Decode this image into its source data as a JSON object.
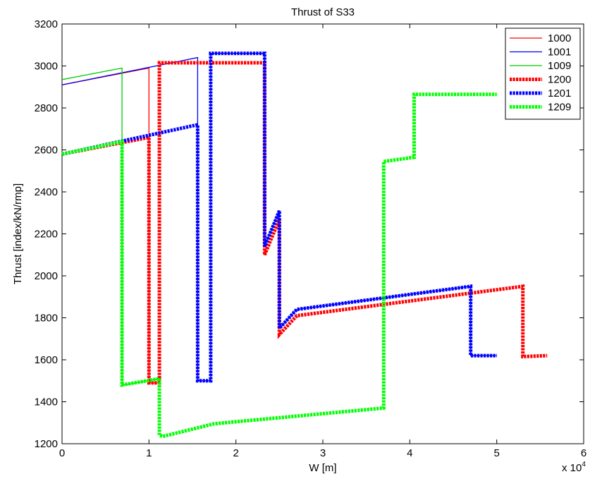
{
  "chart_data": {
    "type": "line",
    "title": "Thrust of S33",
    "xlabel": "W [m]",
    "ylabel": "Thrust [index/kN/rmp]",
    "x_multiplier": "x 10",
    "x_multiplier_exp": "4",
    "xlim": [
      0,
      60000
    ],
    "ylim": [
      1200,
      3200
    ],
    "xticks": [
      0,
      10000,
      20000,
      30000,
      40000,
      50000,
      60000
    ],
    "xtick_labels": [
      "0",
      "1",
      "2",
      "3",
      "4",
      "5",
      "6"
    ],
    "yticks": [
      1200,
      1400,
      1600,
      1800,
      2000,
      2200,
      2400,
      2600,
      2800,
      3000,
      3200
    ],
    "ytick_labels": [
      "1200",
      "1400",
      "1600",
      "1800",
      "2000",
      "2200",
      "2400",
      "2600",
      "2800",
      "3000",
      "3200"
    ],
    "grid": false,
    "legend_position": "top-right",
    "series": [
      {
        "name": "1000",
        "color": "#ff0000",
        "style": "solid",
        "x": [
          0,
          10000,
          10000,
          10100,
          10500,
          11200,
          11300,
          11400
        ],
        "y": [
          2910,
          2990,
          1490,
          1490,
          1490,
          1490,
          1510,
          1510
        ]
      },
      {
        "name": "1001",
        "color": "#0000ff",
        "style": "solid",
        "x": [
          0,
          15600,
          15600,
          17100,
          17100,
          23300,
          23300,
          25000,
          25000,
          27000,
          47000,
          47000,
          50000
        ],
        "y": [
          2910,
          3040,
          1500,
          1500,
          3060,
          3060,
          2140,
          2310,
          1750,
          1840,
          1950,
          1620,
          1620
        ]
      },
      {
        "name": "1009",
        "color": "#00cc00",
        "style": "solid",
        "x": [
          0,
          6900,
          6900,
          7100,
          11200,
          11400
        ],
        "y": [
          2935,
          2990,
          1480,
          1480,
          1510,
          1510
        ]
      },
      {
        "name": "1200",
        "color": "#ff0000",
        "style": "dotted",
        "x": [
          0,
          10000,
          10000,
          11200,
          11200,
          23300,
          23300,
          25000,
          25000,
          27000,
          53000,
          53000,
          55800
        ],
        "y": [
          2580,
          2660,
          1490,
          1490,
          3015,
          3015,
          2100,
          2270,
          1720,
          1810,
          1950,
          1615,
          1620
        ]
      },
      {
        "name": "1201",
        "color": "#0000ff",
        "style": "dotted",
        "x": [
          0,
          15600,
          15600,
          17100,
          17100,
          23300,
          23300,
          25000,
          25000,
          27000,
          47000,
          47000,
          50000
        ],
        "y": [
          2580,
          2720,
          1500,
          1500,
          3060,
          3060,
          2140,
          2310,
          1750,
          1840,
          1950,
          1620,
          1620
        ]
      },
      {
        "name": "1209",
        "color": "#00ff00",
        "style": "dotted",
        "x": [
          0,
          6900,
          6900,
          11200,
          11200,
          11600,
          17500,
          37000,
          37000,
          40500,
          40500,
          50000
        ],
        "y": [
          2580,
          2640,
          1480,
          1510,
          1240,
          1235,
          1295,
          1370,
          2545,
          2565,
          2865,
          2865
        ]
      }
    ]
  }
}
